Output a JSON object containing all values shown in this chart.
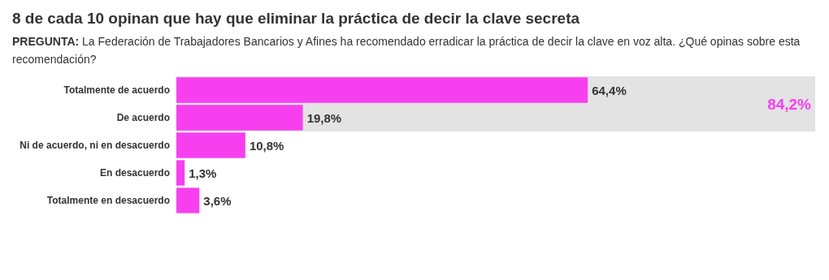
{
  "chart_data": {
    "type": "bar",
    "orientation": "horizontal",
    "title": "8 de cada 10 opinan que hay que eliminar la práctica de decir la clave secreta",
    "subtitle": "PREGUNTA: La Federación de Trabajadores Bancarios y Afines ha recomendado erradicar la práctica de decir la clave en voz alta. ¿Qué opinas sobre esta recomendación?",
    "categories": [
      "Totalmente de acuerdo",
      "De acuerdo",
      "Ni de acuerdo, ni en desacuerdo",
      "En desacuerdo",
      "Totalmente en desacuerdo"
    ],
    "values": [
      64.4,
      19.8,
      10.8,
      1.3,
      3.6
    ],
    "value_labels": [
      "64,4%",
      "19,8%",
      "10,8%",
      "1,3%",
      "3,6%"
    ],
    "color": "#f73ff0",
    "xlim": [
      0,
      100
    ],
    "tick_labels": "y",
    "bands": [
      {
        "axis": "y",
        "from": "Totalmente de acuerdo",
        "to": "De acuerdo",
        "label": "84,2%",
        "color": "#e3e3e3"
      }
    ]
  }
}
